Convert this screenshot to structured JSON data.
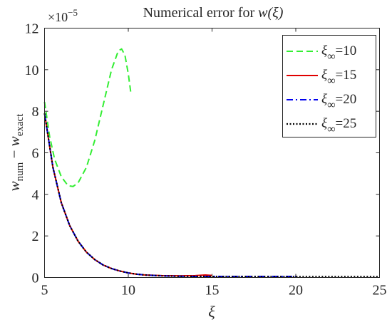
{
  "chart_data": {
    "type": "line",
    "title": {
      "prefix": "Numerical error for ",
      "expr": "w(ξ)"
    },
    "xlabel": "ξ",
    "ylabel": {
      "base1": "w",
      "sub1": "num",
      "op": " − ",
      "base2": "w",
      "sub2": "exact"
    },
    "xlim": [
      5,
      25
    ],
    "ylim": [
      0,
      12
    ],
    "xticks": [
      5,
      10,
      15,
      20,
      25
    ],
    "yticks": [
      0,
      2,
      4,
      6,
      8,
      10,
      12
    ],
    "y_exponent": {
      "base": "×10",
      "power": "−5"
    },
    "grid": false,
    "legend_position": "top-right",
    "series": [
      {
        "name": {
          "symbol": "ξ",
          "sub": "∞",
          "value": "=10"
        },
        "color": "#33ee33",
        "dash": "dashed",
        "points": [
          [
            5.0,
            8.45
          ],
          [
            5.3,
            6.8
          ],
          [
            5.6,
            5.7
          ],
          [
            6.0,
            4.85
          ],
          [
            6.4,
            4.42
          ],
          [
            6.7,
            4.38
          ],
          [
            7.0,
            4.55
          ],
          [
            7.5,
            5.3
          ],
          [
            8.0,
            6.6
          ],
          [
            8.5,
            8.3
          ],
          [
            9.0,
            10.0
          ],
          [
            9.4,
            10.9
          ],
          [
            9.6,
            11.0
          ],
          [
            9.8,
            10.7
          ],
          [
            10.0,
            9.8
          ],
          [
            10.15,
            8.9
          ]
        ]
      },
      {
        "name": {
          "symbol": "ξ",
          "sub": "∞",
          "value": "=15"
        },
        "color": "#e00000",
        "dash": "solid",
        "points": [
          [
            5.0,
            7.9
          ],
          [
            5.5,
            5.3
          ],
          [
            6.0,
            3.6
          ],
          [
            6.5,
            2.5
          ],
          [
            7.0,
            1.75
          ],
          [
            7.5,
            1.22
          ],
          [
            8.0,
            0.86
          ],
          [
            8.5,
            0.6
          ],
          [
            9.0,
            0.43
          ],
          [
            9.5,
            0.31
          ],
          [
            10.0,
            0.22
          ],
          [
            10.5,
            0.16
          ],
          [
            11.0,
            0.12
          ],
          [
            12.0,
            0.09
          ],
          [
            13.0,
            0.08
          ],
          [
            14.0,
            0.09
          ],
          [
            14.6,
            0.12
          ],
          [
            15.0,
            0.1
          ]
        ]
      },
      {
        "name": {
          "symbol": "ξ",
          "sub": "∞",
          "value": "=20"
        },
        "color": "#0000ee",
        "dash": "dashdot",
        "points": [
          [
            5.0,
            7.9
          ],
          [
            5.5,
            5.3
          ],
          [
            6.0,
            3.6
          ],
          [
            6.5,
            2.5
          ],
          [
            7.0,
            1.75
          ],
          [
            7.5,
            1.22
          ],
          [
            8.0,
            0.86
          ],
          [
            8.5,
            0.6
          ],
          [
            9.0,
            0.43
          ],
          [
            9.5,
            0.31
          ],
          [
            10.0,
            0.22
          ],
          [
            10.5,
            0.16
          ],
          [
            11.0,
            0.12
          ],
          [
            12.0,
            0.08
          ],
          [
            13.0,
            0.06
          ],
          [
            14.0,
            0.05
          ],
          [
            16.0,
            0.05
          ],
          [
            18.0,
            0.05
          ],
          [
            20.0,
            0.05
          ]
        ]
      },
      {
        "name": {
          "symbol": "ξ",
          "sub": "∞",
          "value": "=25"
        },
        "color": "#000000",
        "dash": "dotted",
        "points": [
          [
            5.0,
            7.9
          ],
          [
            5.5,
            5.3
          ],
          [
            6.0,
            3.6
          ],
          [
            6.5,
            2.5
          ],
          [
            7.0,
            1.75
          ],
          [
            7.5,
            1.22
          ],
          [
            8.0,
            0.86
          ],
          [
            8.5,
            0.6
          ],
          [
            9.0,
            0.43
          ],
          [
            9.5,
            0.31
          ],
          [
            10.0,
            0.22
          ],
          [
            10.5,
            0.16
          ],
          [
            11.0,
            0.12
          ],
          [
            12.0,
            0.08
          ],
          [
            13.0,
            0.06
          ],
          [
            15.0,
            0.05
          ],
          [
            20.0,
            0.04
          ],
          [
            25.0,
            0.04
          ]
        ]
      }
    ]
  }
}
